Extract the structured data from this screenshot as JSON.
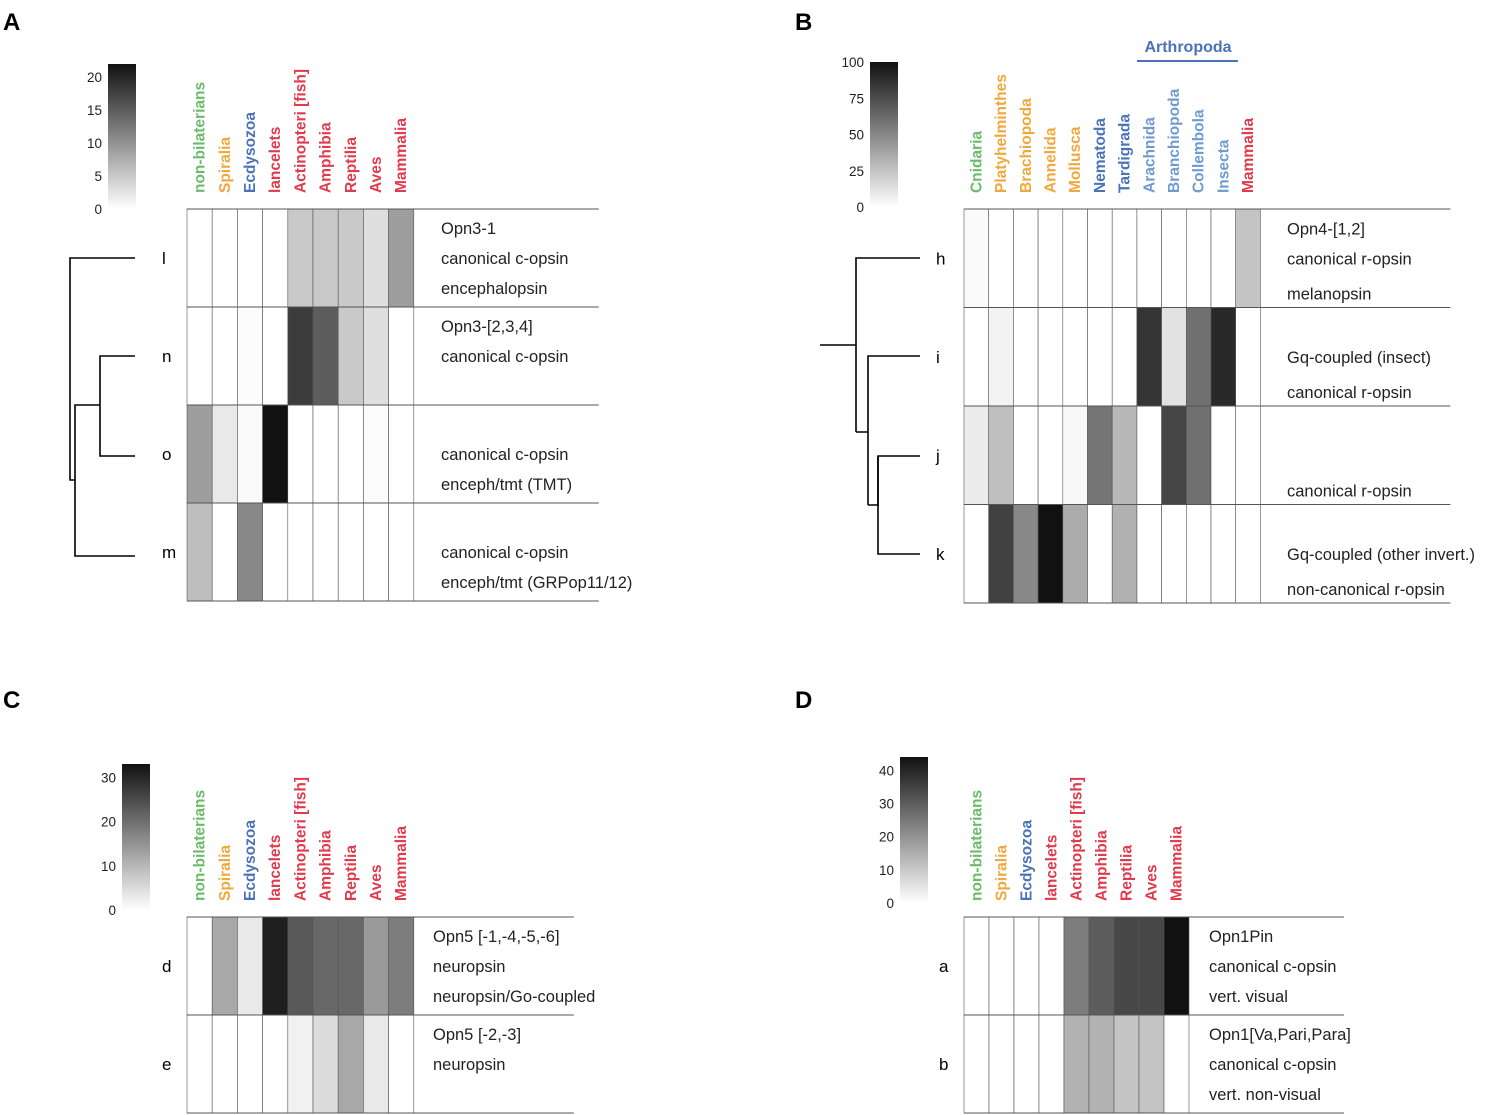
{
  "colors": {
    "green": "#6cbb6c",
    "orange": "#f0a83c",
    "blue": "#4a72b8",
    "lightblue": "#6e9bd0",
    "red": "#e03a4c"
  },
  "chart_data": [
    {
      "panel": "A",
      "type": "heatmap",
      "colorbar": {
        "min": 0,
        "max": 22,
        "ticks": [
          0,
          5,
          10,
          15,
          20
        ]
      },
      "columns": [
        {
          "label": "non-bilaterians",
          "color": "green"
        },
        {
          "label": "Spiralia",
          "color": "orange"
        },
        {
          "label": "Ecdysozoa",
          "color": "blue"
        },
        {
          "label": "lancelets",
          "color": "red"
        },
        {
          "label": "Actinopteri [fish]",
          "color": "red"
        },
        {
          "label": "Amphibia",
          "color": "red"
        },
        {
          "label": "Reptilia",
          "color": "red"
        },
        {
          "label": "Aves",
          "color": "red"
        },
        {
          "label": "Mammalia",
          "color": "red"
        }
      ],
      "rows": [
        {
          "label": "l",
          "values": [
            0,
            0,
            0,
            0,
            5,
            5,
            5,
            3,
            9
          ],
          "annotations": [
            "Opn3-1",
            "canonical c-opsin",
            "encephalopsin"
          ]
        },
        {
          "label": "n",
          "values": [
            0,
            0,
            0.3,
            0,
            18,
            15,
            5,
            3,
            0
          ],
          "annotations": [
            "Opn3-[2,3,4]",
            "canonical c-opsin",
            ""
          ]
        },
        {
          "label": "o",
          "values": [
            9,
            2,
            0.5,
            22,
            0,
            0,
            0,
            0.3,
            0
          ],
          "annotations": [
            "",
            "canonical c-opsin",
            "enceph/tmt (TMT)"
          ]
        },
        {
          "label": "m",
          "values": [
            6,
            0,
            11,
            0,
            0,
            0,
            0,
            0,
            0
          ],
          "annotations": [
            "",
            "canonical c-opsin",
            "enceph/tmt (GRPop11/12)"
          ]
        }
      ]
    },
    {
      "panel": "B",
      "type": "heatmap",
      "group_label": "Arthropoda",
      "colorbar": {
        "min": 0,
        "max": 100,
        "ticks": [
          0,
          25,
          50,
          75,
          100
        ]
      },
      "columns": [
        {
          "label": "Cnidaria",
          "color": "green"
        },
        {
          "label": "Platyhelminthes",
          "color": "orange"
        },
        {
          "label": "Brachiopoda",
          "color": "orange"
        },
        {
          "label": "Annelida",
          "color": "orange"
        },
        {
          "label": "Mollusca",
          "color": "orange"
        },
        {
          "label": "Nematoda",
          "color": "blue"
        },
        {
          "label": "Tardigrada",
          "color": "blue"
        },
        {
          "label": "Arachnida",
          "color": "lightblue"
        },
        {
          "label": "Branchiopoda",
          "color": "lightblue"
        },
        {
          "label": "Collembola",
          "color": "lightblue"
        },
        {
          "label": "Insecta",
          "color": "lightblue"
        },
        {
          "label": "Mammalia",
          "color": "red"
        }
      ],
      "rows": [
        {
          "label": "h",
          "values": [
            2,
            0,
            0,
            0,
            0,
            0,
            0,
            0,
            0,
            0,
            0,
            25
          ],
          "annotations": [
            "Opn4-[1,2]",
            "canonical r-opsin",
            "melanopsin"
          ]
        },
        {
          "label": "i",
          "values": [
            0,
            5,
            0,
            0,
            0,
            0,
            0,
            85,
            12,
            60,
            90,
            0
          ],
          "annotations": [
            "",
            "Gq-coupled (insect)",
            "canonical r-opsin"
          ]
        },
        {
          "label": "j",
          "values": [
            8,
            27,
            0,
            0,
            3,
            58,
            30,
            0,
            78,
            60,
            0,
            0
          ],
          "annotations": [
            "",
            "",
            "canonical r-opsin"
          ]
        },
        {
          "label": "k",
          "values": [
            0,
            80,
            50,
            100,
            35,
            0,
            33,
            0,
            0,
            0,
            0,
            0
          ],
          "annotations": [
            "",
            "Gq-coupled (other invert.)",
            "non-canonical r-opsin"
          ]
        }
      ]
    },
    {
      "panel": "C",
      "type": "heatmap",
      "colorbar": {
        "min": 0,
        "max": 33,
        "ticks": [
          0,
          10,
          20,
          30
        ]
      },
      "columns": [
        {
          "label": "non-bilaterians",
          "color": "green"
        },
        {
          "label": "Spiralia",
          "color": "orange"
        },
        {
          "label": "Ecdysozoa",
          "color": "blue"
        },
        {
          "label": "lancelets",
          "color": "red"
        },
        {
          "label": "Actinopteri [fish]",
          "color": "red"
        },
        {
          "label": "Amphibia",
          "color": "red"
        },
        {
          "label": "Reptilia",
          "color": "red"
        },
        {
          "label": "Aves",
          "color": "red"
        },
        {
          "label": "Mammalia",
          "color": "red"
        }
      ],
      "rows": [
        {
          "label": "d",
          "values": [
            0,
            12,
            3,
            31,
            23,
            21,
            21,
            14,
            18
          ],
          "annotations": [
            "Opn5 [-1,-4,-5,-6]",
            "neuropsin",
            "neuropsin/Go-coupled"
          ]
        },
        {
          "label": "e",
          "values": [
            0,
            0,
            0,
            0,
            2,
            5,
            12,
            3,
            0
          ],
          "annotations": [
            "Opn5 [-2,-3]",
            "neuropsin",
            ""
          ]
        }
      ]
    },
    {
      "panel": "D",
      "type": "heatmap",
      "colorbar": {
        "min": 0,
        "max": 44,
        "ticks": [
          0,
          10,
          20,
          30,
          40
        ]
      },
      "columns": [
        {
          "label": "non-bilaterians",
          "color": "green"
        },
        {
          "label": "Spiralia",
          "color": "orange"
        },
        {
          "label": "Ecdysozoa",
          "color": "blue"
        },
        {
          "label": "lancelets",
          "color": "red"
        },
        {
          "label": "Actinopteri [fish]",
          "color": "red"
        },
        {
          "label": "Amphibia",
          "color": "red"
        },
        {
          "label": "Reptilia",
          "color": "red"
        },
        {
          "label": "Aves",
          "color": "red"
        },
        {
          "label": "Mammalia",
          "color": "red"
        }
      ],
      "rows": [
        {
          "label": "a",
          "values": [
            0,
            0,
            0,
            0,
            24,
            30,
            34,
            34,
            44
          ],
          "annotations": [
            "Opn1Pin",
            "canonical c-opsin",
            "vert. visual"
          ]
        },
        {
          "label": "b",
          "values": [
            0,
            0,
            0,
            0,
            14,
            14,
            11,
            11,
            0
          ],
          "annotations": [
            "Opn1[Va,Pari,Para]",
            "canonical c-opsin",
            "vert. non-visual"
          ]
        }
      ]
    }
  ]
}
